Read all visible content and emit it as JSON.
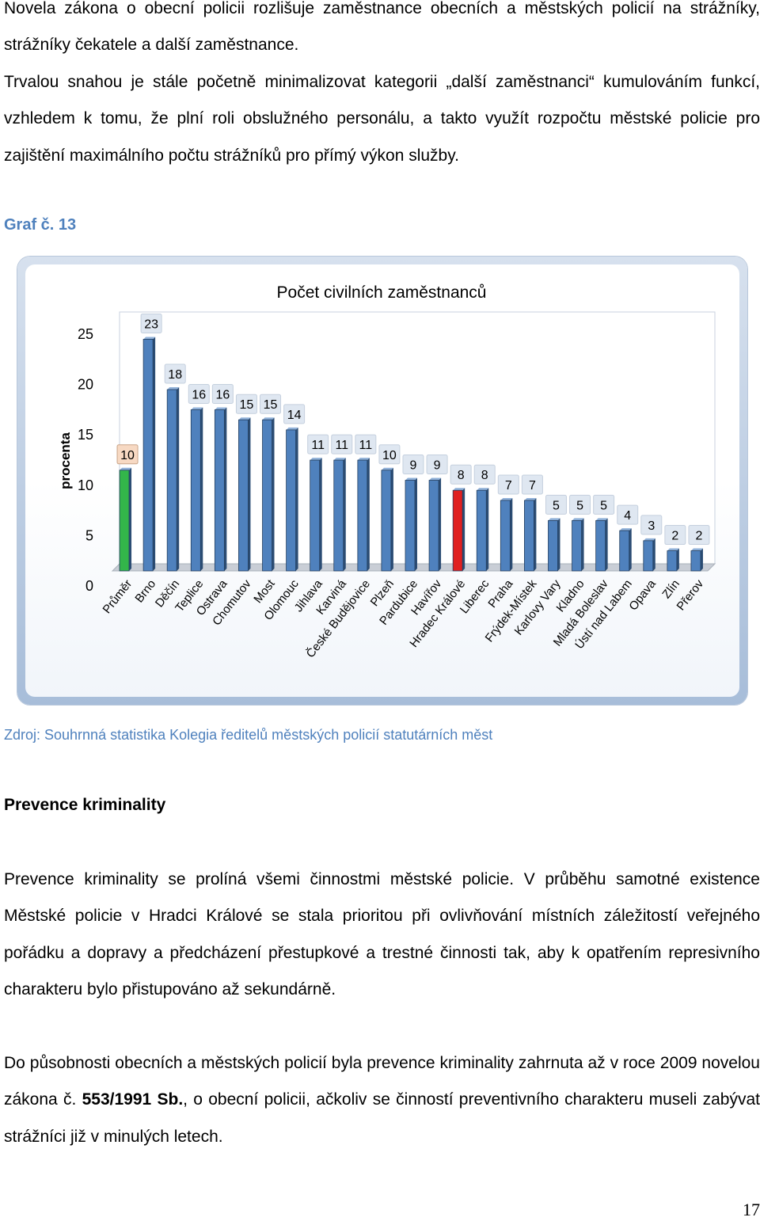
{
  "paragraphs": {
    "p1": "Novela zákona o obecní policii rozlišuje zaměstnance obecních a městských policií na strážníky, strážníky čekatele a další zaměstnance.",
    "p2": "Trvalou snahou je stále početně minimalizovat kategorii „další zaměstnanci“ kumulováním funkcí, vzhledem k tomu, že plní roli obslužného personálu, a takto využít rozpočtu městské policie pro zajištění maximálního počtu strážníků pro přímý výkon služby.",
    "p3": "Prevence kriminality se prolíná všemi činnostmi městské policie. V průběhu samotné existence Městské policie v Hradci Králové se stala prioritou při ovlivňování místních záležitostí veřejného pořádku a dopravy a předcházení přestupkové a trestné činnosti tak, aby k opatřením represivního charakteru bylo přistupováno až sekundárně.",
    "p4_before": "Do působnosti obecních a městských policií byla prevence kriminality zahrnuta až v roce 2009 novelou zákona č. ",
    "p4_ref": "553/1991 Sb.",
    "p4_after": ", o obecní policii, ačkoliv se činností preventivního charakteru museli zabývat strážníci již v minulých letech."
  },
  "caption": "Graf č. 13",
  "source": "Zdroj: Souhrnná statistika Kolegia ředitelů městských policií statutárních měst",
  "heading": "Prevence kriminality",
  "page_number": "17",
  "colors": {
    "default_bar": "#4f81bd",
    "highlight_bar": "#e02020",
    "average_bar": "#33b54a",
    "caption": "#4f81bd"
  },
  "chart_data": {
    "type": "bar",
    "title": "Počet civilních zaměstnanců",
    "ylabel": "procenta",
    "xlabel": "",
    "ylim": [
      0,
      25
    ],
    "yticks": [
      0,
      5,
      10,
      15,
      20,
      25
    ],
    "categories": [
      "Průměr",
      "Brno",
      "Děčín",
      "Teplice",
      "Ostrava",
      "Chomutov",
      "Most",
      "Olomouc",
      "Jihlava",
      "Karviná",
      "České Budějovice",
      "Plzeň",
      "Pardubice",
      "Havířov",
      "Hradec Králové",
      "Liberec",
      "Praha",
      "Frýdek-Místek",
      "Karlovy Vary",
      "Kladno",
      "Mladá Boleslav",
      "Ústí nad Labem",
      "Opava",
      "Zlín",
      "Přerov"
    ],
    "values": [
      10,
      23,
      18,
      16,
      16,
      15,
      15,
      14,
      11,
      11,
      11,
      10,
      9,
      9,
      8,
      8,
      7,
      7,
      5,
      5,
      5,
      4,
      3,
      2,
      2
    ],
    "average_category": "Průměr",
    "highlight_category": "Hradec Králové",
    "legend": "none",
    "grid": false
  }
}
